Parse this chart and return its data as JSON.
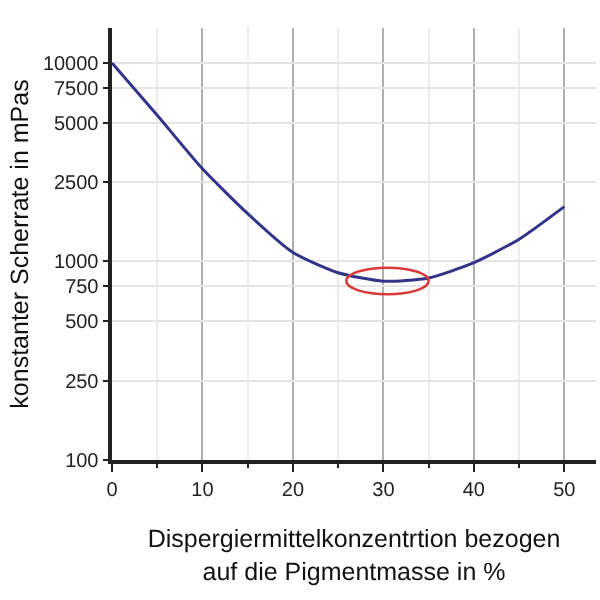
{
  "chart_data": {
    "type": "line",
    "xlabel": "Dispergiermittelkonzentrtion bezogen auf die Pigmentmasse in %",
    "ylabel": "konstanter Scherrate in mPas",
    "x": [
      0,
      5,
      10,
      15,
      20,
      25,
      30,
      35,
      40,
      45,
      50
    ],
    "series": [
      {
        "color": "#33338a",
        "values": [
          10000,
          5450,
          2930,
          1740,
          1110,
          878,
          795,
          826,
          986,
          1295,
          1890
        ]
      }
    ],
    "log": "y",
    "xlim": [
      0,
      53.5
    ],
    "xticks": [
      0,
      10,
      20,
      30,
      40,
      50
    ],
    "ylim": [
      100,
      15000
    ],
    "yticks": [
      100,
      250,
      500,
      750,
      1000,
      2500,
      5000,
      7500,
      10000
    ],
    "grid": true,
    "legend": false,
    "marker": "none",
    "line_style": "solid"
  }
}
